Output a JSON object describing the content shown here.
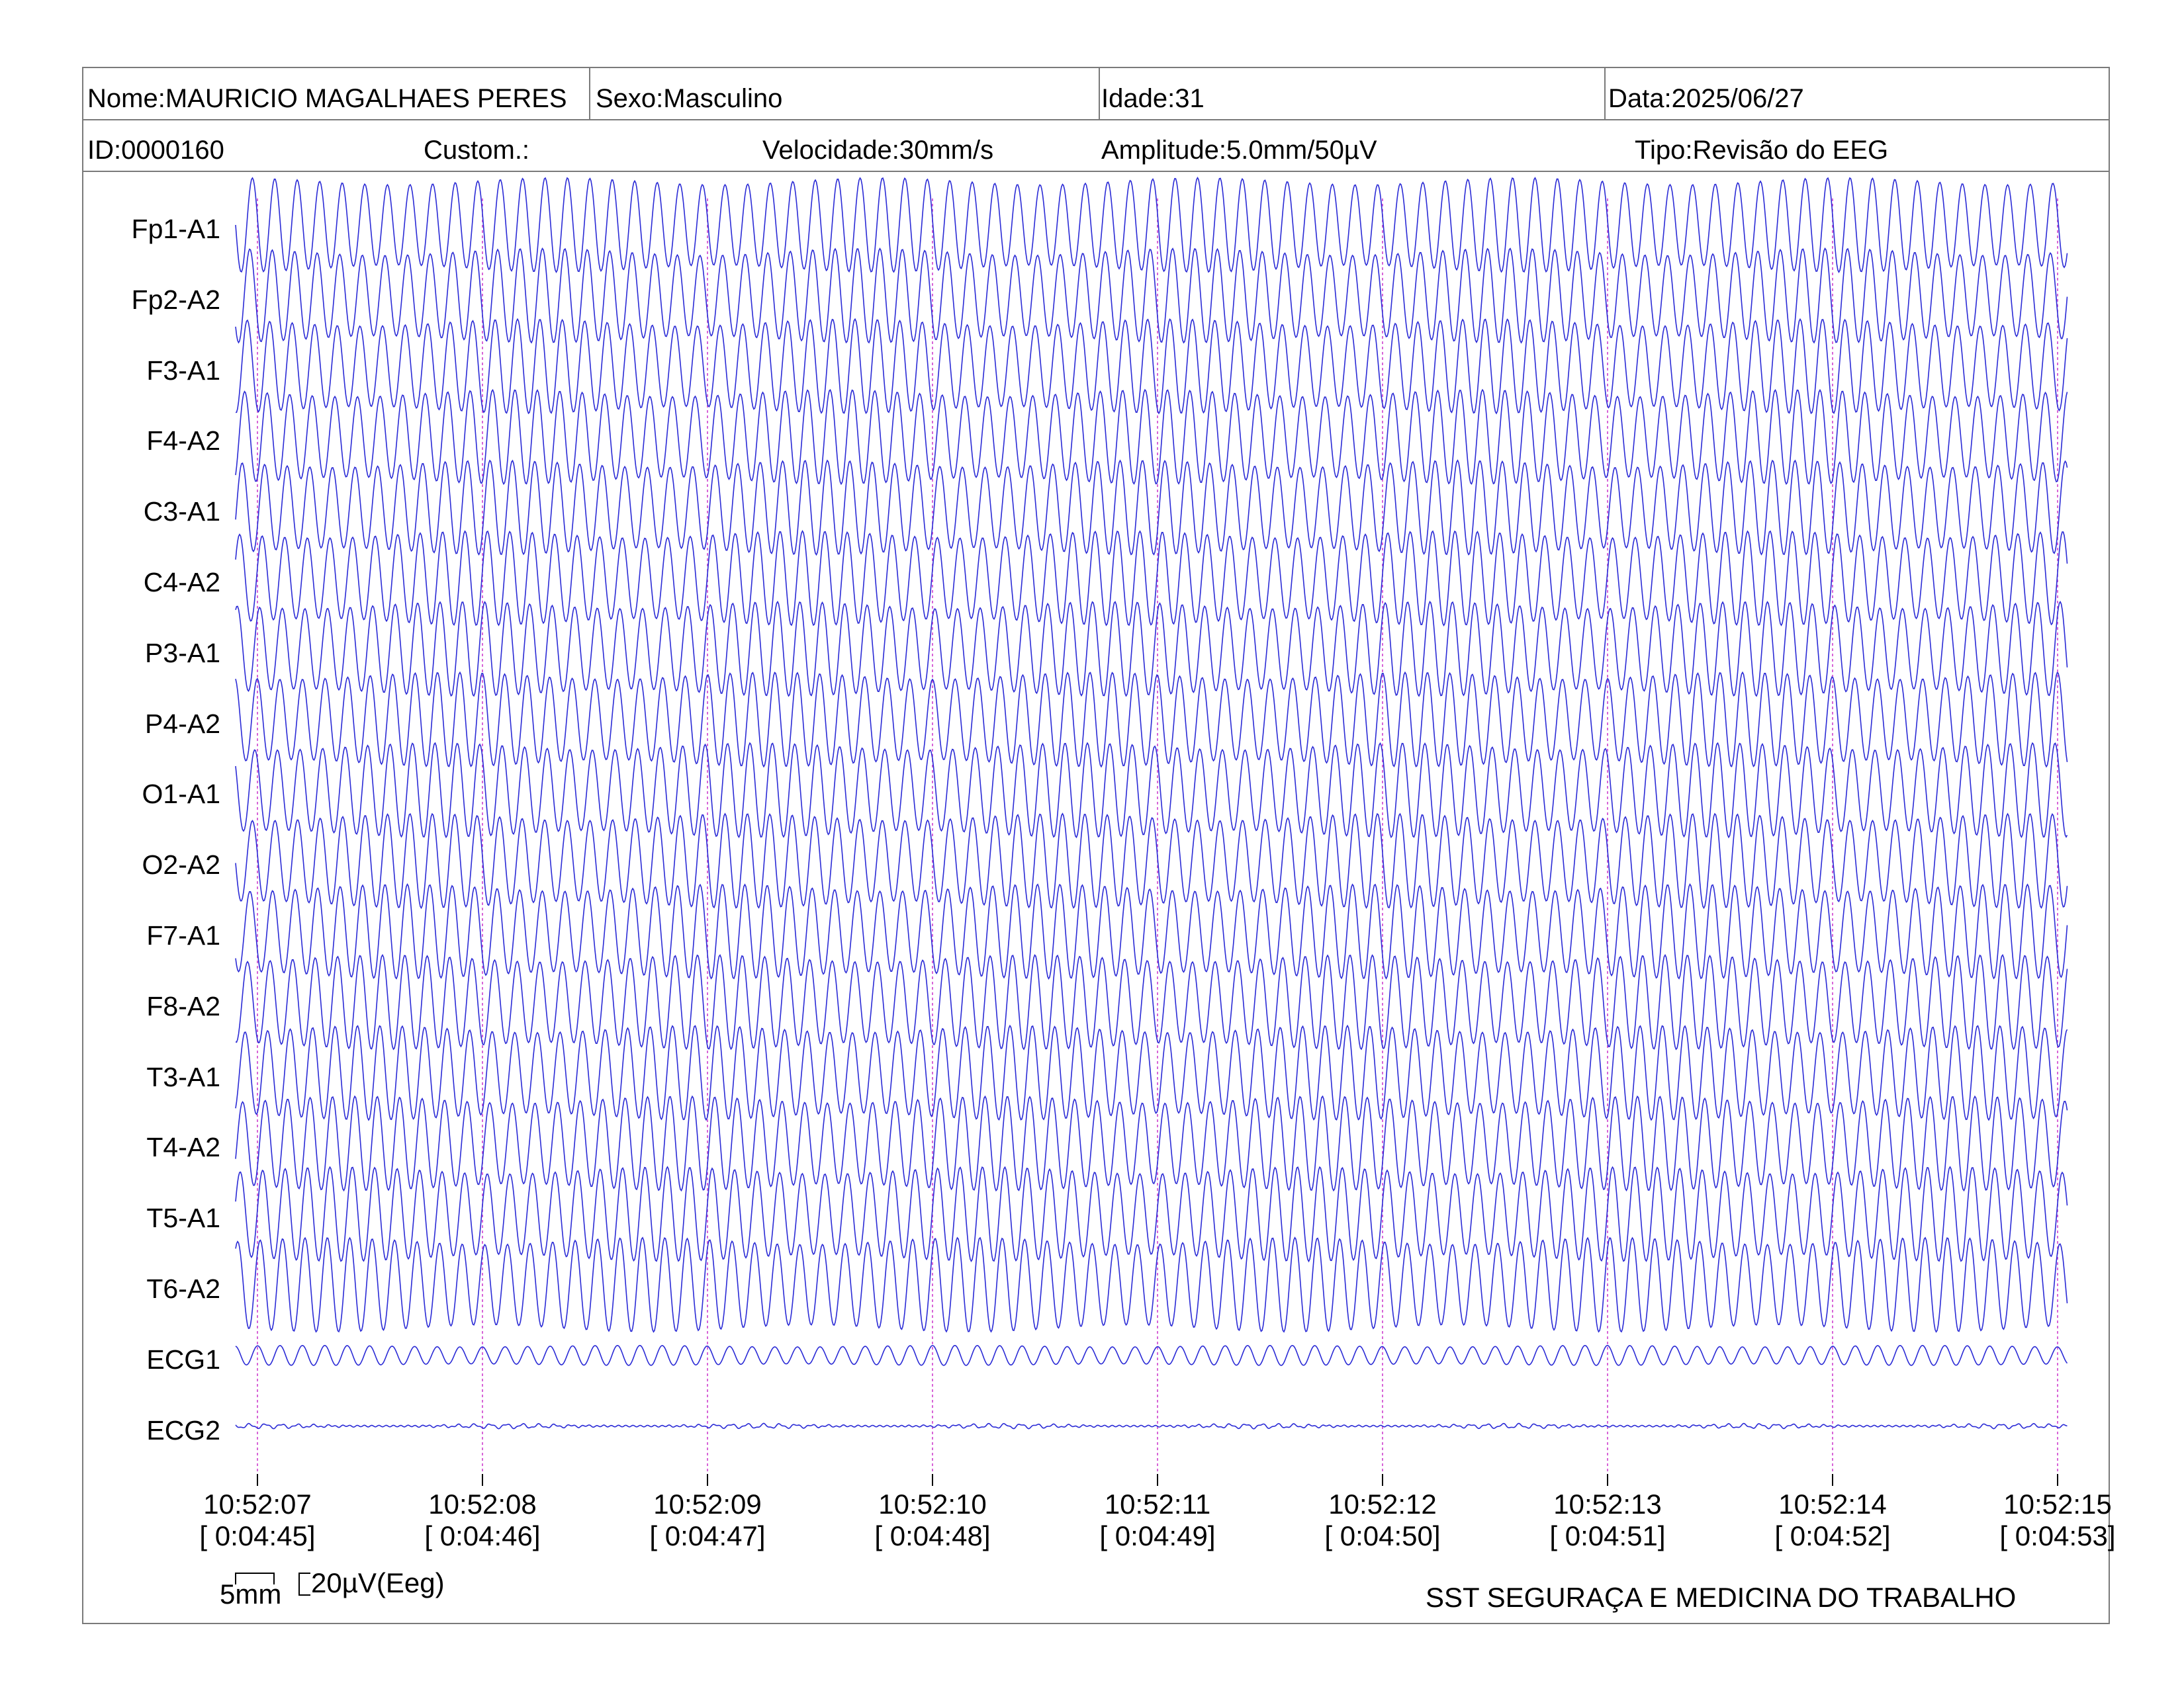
{
  "header": {
    "nome": "Nome:MAURICIO MAGALHAES PERES",
    "sexo": "Sexo:Masculino",
    "idade": "Idade:31",
    "data": "Data:2025/06/27",
    "id": "ID:0000160",
    "custom": "Custom.:",
    "velocidade": "Velocidade:30mm/s",
    "amplitude": "Amplitude:5.0mm/50µV",
    "tipo": "Tipo:Revisão do EEG"
  },
  "channels": [
    "Fp1-A1",
    "Fp2-A2",
    "F3-A1",
    "F4-A2",
    "C3-A1",
    "C4-A2",
    "P3-A1",
    "P4-A2",
    "O1-A1",
    "O2-A2",
    "F7-A1",
    "F8-A2",
    "T3-A1",
    "T4-A2",
    "T5-A1",
    "T6-A2",
    "ECG1",
    "ECG2"
  ],
  "time_marks": [
    {
      "clock": "10:52:07",
      "elapsed": "[ 0:04:45]"
    },
    {
      "clock": "10:52:08",
      "elapsed": "[ 0:04:46]"
    },
    {
      "clock": "10:52:09",
      "elapsed": "[ 0:04:47]"
    },
    {
      "clock": "10:52:10",
      "elapsed": "[ 0:04:48]"
    },
    {
      "clock": "10:52:11",
      "elapsed": "[ 0:04:49]"
    },
    {
      "clock": "10:52:12",
      "elapsed": "[ 0:04:50]"
    },
    {
      "clock": "10:52:13",
      "elapsed": "[ 0:04:51]"
    },
    {
      "clock": "10:52:14",
      "elapsed": "[ 0:04:52]"
    },
    {
      "clock": "10:52:15",
      "elapsed": "[ 0:04:53]"
    }
  ],
  "scale": {
    "time_scale": "5mm",
    "amp_scale": "20µV(Eeg)"
  },
  "footer": {
    "org": "SST SEGURAÇA E MEDICINA DO TRABALHO"
  },
  "colors": {
    "trace": "#2b2bd6",
    "time_marker": "#cc33cc",
    "border": "#7a7a7a"
  },
  "signal": {
    "eeg_cycles_per_second": 10,
    "ecg1_cycles_per_second": 10,
    "ecg2": "flat with small ripple"
  }
}
